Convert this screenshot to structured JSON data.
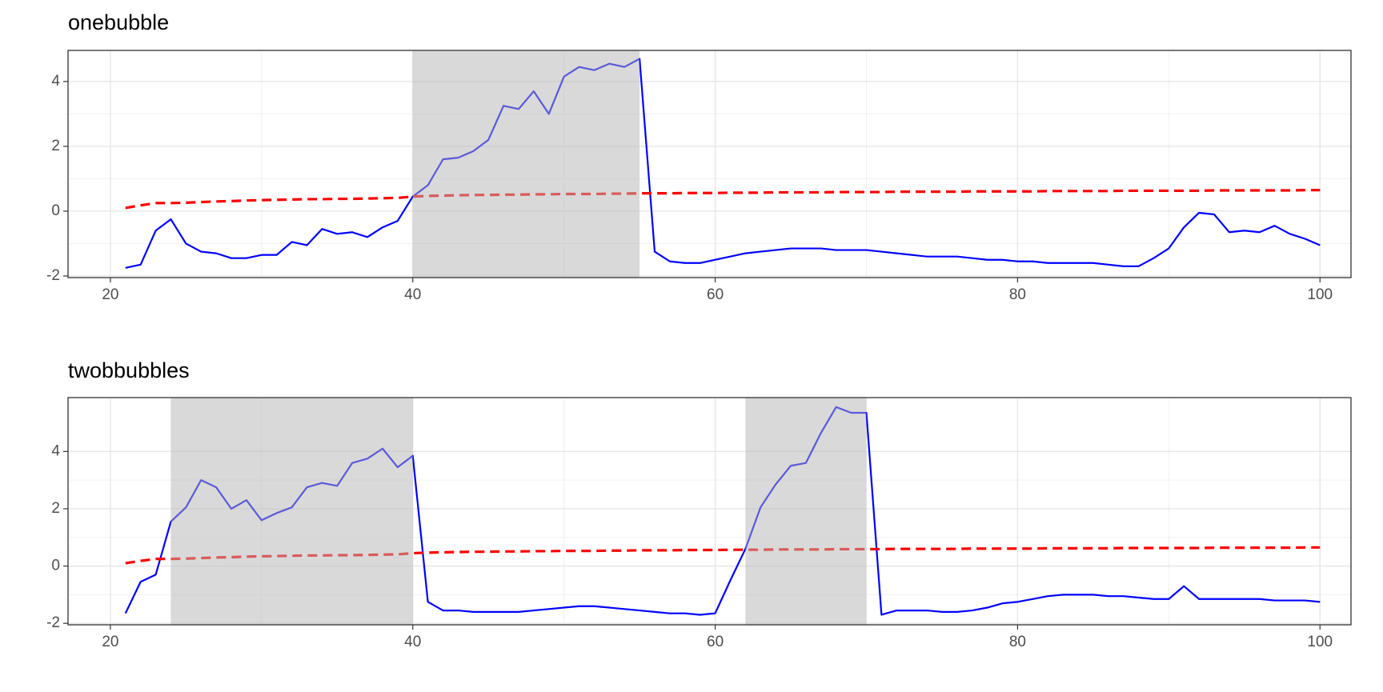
{
  "chart_data": [
    {
      "type": "line",
      "title": "onebubble",
      "x": [
        21,
        22,
        23,
        24,
        25,
        26,
        27,
        28,
        29,
        30,
        31,
        32,
        33,
        34,
        35,
        36,
        37,
        38,
        39,
        40,
        41,
        42,
        43,
        44,
        45,
        46,
        47,
        48,
        49,
        50,
        51,
        52,
        53,
        54,
        55,
        56,
        57,
        58,
        59,
        60,
        61,
        62,
        63,
        64,
        65,
        66,
        67,
        68,
        69,
        70,
        71,
        72,
        73,
        74,
        75,
        76,
        77,
        78,
        79,
        80,
        81,
        82,
        83,
        84,
        85,
        86,
        87,
        88,
        89,
        90,
        91,
        92,
        93,
        94,
        95,
        96,
        97,
        98,
        99,
        100
      ],
      "series": [
        {
          "color": "#0000ff",
          "dashed": false,
          "values": [
            -1.75,
            -1.65,
            -0.6,
            -0.25,
            -1.0,
            -1.25,
            -1.3,
            -1.45,
            -1.45,
            -1.35,
            -1.35,
            -0.95,
            -1.05,
            -0.55,
            -0.7,
            -0.65,
            -0.8,
            -0.5,
            -0.3,
            0.45,
            0.8,
            1.6,
            1.65,
            1.85,
            2.2,
            3.25,
            3.15,
            3.7,
            3.0,
            4.15,
            4.45,
            4.35,
            4.55,
            4.45,
            4.7,
            -1.25,
            -1.55,
            -1.6,
            -1.6,
            -1.5,
            -1.4,
            -1.3,
            -1.25,
            -1.2,
            -1.15,
            -1.15,
            -1.15,
            -1.2,
            -1.2,
            -1.2,
            -1.25,
            -1.3,
            -1.35,
            -1.4,
            -1.4,
            -1.4,
            -1.45,
            -1.5,
            -1.5,
            -1.55,
            -1.55,
            -1.6,
            -1.6,
            -1.6,
            -1.6,
            -1.65,
            -1.7,
            -1.7,
            -1.45,
            -1.15,
            -0.5,
            -0.05,
            -0.1,
            -0.65,
            -0.6,
            -0.65,
            -0.45,
            -0.7,
            -0.85,
            -1.05
          ]
        },
        {
          "color": "#ff0000",
          "dashed": true,
          "values": [
            0.1,
            0.18,
            0.25,
            0.25,
            0.26,
            0.28,
            0.3,
            0.31,
            0.33,
            0.34,
            0.35,
            0.36,
            0.37,
            0.37,
            0.38,
            0.38,
            0.39,
            0.4,
            0.41,
            0.45,
            0.47,
            0.48,
            0.49,
            0.5,
            0.5,
            0.51,
            0.51,
            0.52,
            0.52,
            0.53,
            0.53,
            0.53,
            0.54,
            0.54,
            0.55,
            0.55,
            0.55,
            0.56,
            0.56,
            0.56,
            0.57,
            0.57,
            0.57,
            0.58,
            0.58,
            0.58,
            0.58,
            0.59,
            0.59,
            0.59,
            0.59,
            0.6,
            0.6,
            0.6,
            0.6,
            0.6,
            0.61,
            0.61,
            0.61,
            0.61,
            0.61,
            0.62,
            0.62,
            0.62,
            0.62,
            0.62,
            0.63,
            0.63,
            0.63,
            0.63,
            0.63,
            0.63,
            0.64,
            0.64,
            0.64,
            0.64,
            0.64,
            0.64,
            0.65,
            0.65
          ]
        }
      ],
      "shaded_regions": [
        [
          40,
          55
        ]
      ],
      "shade_color": "#b3b3b3",
      "xlim": [
        17.2,
        102.05
      ],
      "ylim": [
        -2.05,
        4.96
      ],
      "xticks": [
        20,
        40,
        60,
        80,
        100
      ],
      "yticks": [
        -2,
        0,
        2,
        4
      ],
      "grid": true
    },
    {
      "type": "line",
      "title": "twobbubbles",
      "x": [
        21,
        22,
        23,
        24,
        25,
        26,
        27,
        28,
        29,
        30,
        31,
        32,
        33,
        34,
        35,
        36,
        37,
        38,
        39,
        40,
        41,
        42,
        43,
        44,
        45,
        46,
        47,
        48,
        49,
        50,
        51,
        52,
        53,
        54,
        55,
        56,
        57,
        58,
        59,
        60,
        61,
        62,
        63,
        64,
        65,
        66,
        67,
        68,
        69,
        70,
        71,
        72,
        73,
        74,
        75,
        76,
        77,
        78,
        79,
        80,
        81,
        82,
        83,
        84,
        85,
        86,
        87,
        88,
        89,
        90,
        91,
        92,
        93,
        94,
        95,
        96,
        97,
        98,
        99,
        100
      ],
      "series": [
        {
          "color": "#0000ff",
          "dashed": false,
          "values": [
            -1.65,
            -0.55,
            -0.3,
            1.55,
            2.05,
            3.0,
            2.75,
            2.0,
            2.3,
            1.6,
            1.85,
            2.05,
            2.75,
            2.9,
            2.8,
            3.6,
            3.75,
            4.1,
            3.45,
            3.85,
            -1.25,
            -1.55,
            -1.55,
            -1.6,
            -1.6,
            -1.6,
            -1.6,
            -1.55,
            -1.5,
            -1.45,
            -1.4,
            -1.4,
            -1.45,
            -1.5,
            -1.55,
            -1.6,
            -1.65,
            -1.65,
            -1.7,
            -1.65,
            -0.5,
            0.6,
            2.05,
            2.85,
            3.5,
            3.6,
            4.65,
            5.55,
            5.35,
            5.35,
            -1.7,
            -1.55,
            -1.55,
            -1.55,
            -1.6,
            -1.6,
            -1.55,
            -1.45,
            -1.3,
            -1.25,
            -1.15,
            -1.05,
            -1.0,
            -1.0,
            -1.0,
            -1.05,
            -1.05,
            -1.1,
            -1.15,
            -1.15,
            -0.7,
            -1.15,
            -1.15,
            -1.15,
            -1.15,
            -1.15,
            -1.2,
            -1.2,
            -1.2,
            -1.25
          ]
        },
        {
          "color": "#ff0000",
          "dashed": true,
          "values": [
            0.1,
            0.18,
            0.25,
            0.25,
            0.26,
            0.28,
            0.3,
            0.31,
            0.33,
            0.34,
            0.35,
            0.36,
            0.37,
            0.37,
            0.38,
            0.38,
            0.39,
            0.4,
            0.41,
            0.45,
            0.47,
            0.48,
            0.49,
            0.5,
            0.5,
            0.51,
            0.51,
            0.52,
            0.52,
            0.53,
            0.53,
            0.53,
            0.54,
            0.54,
            0.55,
            0.55,
            0.55,
            0.56,
            0.56,
            0.56,
            0.57,
            0.57,
            0.57,
            0.58,
            0.58,
            0.58,
            0.58,
            0.59,
            0.59,
            0.59,
            0.59,
            0.6,
            0.6,
            0.6,
            0.6,
            0.6,
            0.61,
            0.61,
            0.61,
            0.61,
            0.61,
            0.62,
            0.62,
            0.62,
            0.62,
            0.62,
            0.63,
            0.63,
            0.63,
            0.63,
            0.63,
            0.63,
            0.64,
            0.64,
            0.64,
            0.64,
            0.64,
            0.64,
            0.65,
            0.65
          ]
        }
      ],
      "shaded_regions": [
        [
          24,
          40
        ],
        [
          62,
          70
        ]
      ],
      "shade_color": "#b3b3b3",
      "xlim": [
        17.2,
        102.05
      ],
      "ylim": [
        -2.05,
        5.88
      ],
      "xticks": [
        20,
        40,
        60,
        80,
        100
      ],
      "yticks": [
        -2,
        0,
        2,
        4
      ],
      "grid": true
    }
  ]
}
